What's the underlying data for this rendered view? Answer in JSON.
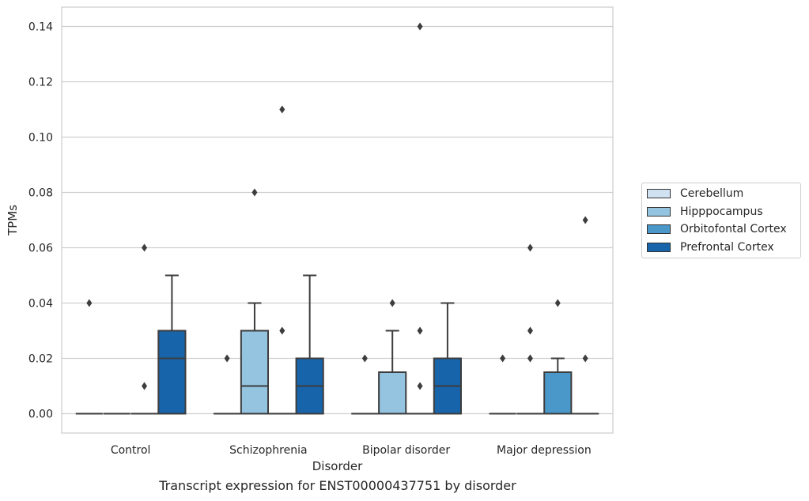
{
  "caption": "Transcript expression for ENST00000437751 by disorder",
  "chart_data": {
    "type": "boxplot",
    "xlabel": "Disorder",
    "ylabel": "TPMs",
    "ylim": [
      -0.007,
      0.147
    ],
    "yticks": [
      0.0,
      0.02,
      0.04,
      0.06,
      0.08,
      0.1,
      0.12,
      0.14
    ],
    "ytick_labels": [
      "0.00",
      "0.02",
      "0.04",
      "0.06",
      "0.08",
      "0.10",
      "0.12",
      "0.14"
    ],
    "grid": "horizontal",
    "legend_position": "right",
    "categories": [
      "Control",
      "Schizophrenia",
      "Bipolar disorder",
      "Major depression"
    ],
    "series": [
      {
        "name": "Cerebellum",
        "color": "#d0e1f2",
        "boxes": [
          {
            "q1": 0,
            "median": 0,
            "q3": 0,
            "whislo": 0,
            "whishi": 0,
            "fliers": [
              0.04
            ]
          },
          {
            "q1": 0,
            "median": 0,
            "q3": 0,
            "whislo": 0,
            "whishi": 0,
            "fliers": [
              0.02
            ]
          },
          {
            "q1": 0,
            "median": 0,
            "q3": 0,
            "whislo": 0,
            "whishi": 0,
            "fliers": [
              0.02
            ]
          },
          {
            "q1": 0,
            "median": 0,
            "q3": 0,
            "whislo": 0,
            "whishi": 0,
            "fliers": [
              0.02
            ]
          }
        ]
      },
      {
        "name": "Hipppocampus",
        "color": "#94c4df",
        "boxes": [
          {
            "q1": 0,
            "median": 0,
            "q3": 0,
            "whislo": 0,
            "whishi": 0,
            "fliers": []
          },
          {
            "q1": 0,
            "median": 0.01,
            "q3": 0.03,
            "whislo": 0,
            "whishi": 0.04,
            "fliers": [
              0.08
            ]
          },
          {
            "q1": 0,
            "median": 0,
            "q3": 0.015,
            "whislo": 0,
            "whishi": 0.03,
            "fliers": [
              0.04
            ]
          },
          {
            "q1": 0,
            "median": 0,
            "q3": 0,
            "whislo": 0,
            "whishi": 0,
            "fliers": [
              0.02,
              0.03,
              0.06
            ]
          }
        ]
      },
      {
        "name": "Orbitofontal Cortex",
        "color": "#4a98c9",
        "boxes": [
          {
            "q1": 0,
            "median": 0,
            "q3": 0,
            "whislo": 0,
            "whishi": 0,
            "fliers": [
              0.01,
              0.06
            ]
          },
          {
            "q1": 0,
            "median": 0,
            "q3": 0,
            "whislo": 0,
            "whishi": 0,
            "fliers": [
              0.03,
              0.11
            ]
          },
          {
            "q1": 0,
            "median": 0,
            "q3": 0,
            "whislo": 0,
            "whishi": 0,
            "fliers": [
              0.01,
              0.03,
              0.14
            ]
          },
          {
            "q1": 0,
            "median": 0,
            "q3": 0.015,
            "whislo": 0,
            "whishi": 0.02,
            "fliers": [
              0.04
            ]
          }
        ]
      },
      {
        "name": "Prefrontal Cortex",
        "color": "#1764ab",
        "boxes": [
          {
            "q1": 0,
            "median": 0.02,
            "q3": 0.03,
            "whislo": 0,
            "whishi": 0.05,
            "fliers": []
          },
          {
            "q1": 0,
            "median": 0.01,
            "q3": 0.02,
            "whislo": 0,
            "whishi": 0.05,
            "fliers": []
          },
          {
            "q1": 0,
            "median": 0.01,
            "q3": 0.02,
            "whislo": 0,
            "whishi": 0.04,
            "fliers": []
          },
          {
            "q1": 0,
            "median": 0,
            "q3": 0,
            "whislo": 0,
            "whishi": 0,
            "fliers": [
              0.02,
              0.07
            ]
          }
        ]
      }
    ]
  }
}
